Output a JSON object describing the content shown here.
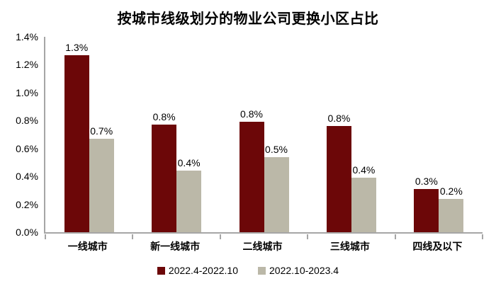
{
  "chart_data": {
    "type": "bar",
    "title": "按城市线级划分的物业公司更换小区占比",
    "categories": [
      "一线城市",
      "新一线城市",
      "二线城市",
      "三线城市",
      "四线及以下"
    ],
    "series": [
      {
        "name": "2022.4-2022.10",
        "color": "#6C0708",
        "values": [
          1.27,
          0.77,
          0.79,
          0.76,
          0.31
        ],
        "labels": [
          "1.3%",
          "0.8%",
          "0.8%",
          "0.8%",
          "0.3%"
        ]
      },
      {
        "name": "2022.10-2023.4",
        "color": "#BBB8A8",
        "values": [
          0.67,
          0.44,
          0.54,
          0.39,
          0.24
        ],
        "labels": [
          "0.7%",
          "0.4%",
          "0.5%",
          "0.4%",
          "0.2%"
        ]
      }
    ],
    "xlabel": "",
    "ylabel": "",
    "ylim": [
      0,
      1.4
    ],
    "yticks": [
      "1.4%",
      "1.2%",
      "1.0%",
      "0.8%",
      "0.6%",
      "0.4%",
      "0.2%",
      "0.0%"
    ],
    "grid": false,
    "legend_position": "bottom",
    "axis_color": "#A6A6A6"
  }
}
